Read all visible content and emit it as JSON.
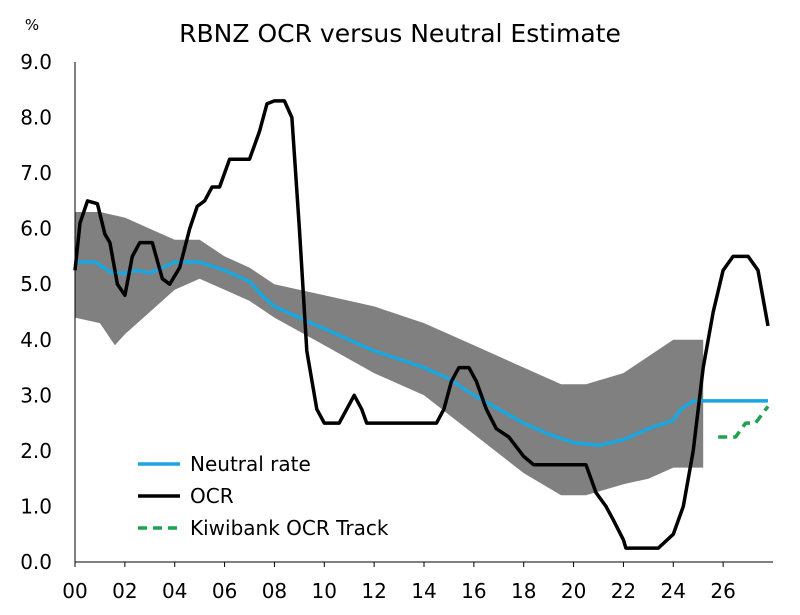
{
  "chart_data": {
    "type": "line",
    "title": "RBNZ OCR versus Neutral Estimate",
    "ylabel": "%",
    "xlabel": "",
    "xlim": [
      0,
      28
    ],
    "ylim": [
      0,
      9
    ],
    "x_ticks": [
      0,
      2,
      4,
      6,
      8,
      10,
      12,
      14,
      16,
      18,
      20,
      22,
      24,
      26
    ],
    "x_tick_labels": [
      "00",
      "02",
      "04",
      "06",
      "08",
      "10",
      "12",
      "14",
      "16",
      "18",
      "20",
      "22",
      "24",
      "26"
    ],
    "y_ticks": [
      0,
      1,
      2,
      3,
      4,
      5,
      6,
      7,
      8,
      9
    ],
    "y_tick_labels": [
      "0.0",
      "1.0",
      "2.0",
      "3.0",
      "4.0",
      "5.0",
      "6.0",
      "7.0",
      "8.0",
      "9.0"
    ],
    "legend_position": "bottom-left",
    "colors": {
      "neutral": "#1aa7e0",
      "ocr": "#000000",
      "track": "#20a050",
      "band": "#808080",
      "axis": "#000000"
    },
    "band": {
      "name": "Neutral estimate range",
      "upper": [
        [
          0,
          6.3
        ],
        [
          1,
          6.3
        ],
        [
          2,
          6.2
        ],
        [
          3,
          6.0
        ],
        [
          4,
          5.8
        ],
        [
          5,
          5.8
        ],
        [
          6,
          5.5
        ],
        [
          7,
          5.3
        ],
        [
          8,
          5.0
        ],
        [
          10,
          4.8
        ],
        [
          12,
          4.6
        ],
        [
          14,
          4.3
        ],
        [
          16,
          3.9
        ],
        [
          18,
          3.5
        ],
        [
          19.5,
          3.2
        ],
        [
          20.5,
          3.2
        ],
        [
          22,
          3.4
        ],
        [
          23,
          3.7
        ],
        [
          24,
          4.0
        ],
        [
          25.2,
          4.0
        ]
      ],
      "lower": [
        [
          0,
          4.4
        ],
        [
          1,
          4.3
        ],
        [
          1.6,
          3.9
        ],
        [
          2,
          4.1
        ],
        [
          3,
          4.5
        ],
        [
          4,
          4.9
        ],
        [
          5,
          5.1
        ],
        [
          6,
          4.9
        ],
        [
          7,
          4.7
        ],
        [
          8,
          4.4
        ],
        [
          10,
          3.9
        ],
        [
          12,
          3.4
        ],
        [
          14,
          3.0
        ],
        [
          16,
          2.3
        ],
        [
          18,
          1.6
        ],
        [
          19.5,
          1.2
        ],
        [
          20.5,
          1.2
        ],
        [
          22,
          1.4
        ],
        [
          23,
          1.5
        ],
        [
          24,
          1.7
        ],
        [
          25.2,
          1.7
        ]
      ]
    },
    "series": [
      {
        "name": "Neutral rate",
        "color": "#1aa7e0",
        "style": "solid",
        "points": [
          [
            0,
            5.4
          ],
          [
            0.8,
            5.4
          ],
          [
            1.5,
            5.2
          ],
          [
            2,
            5.2
          ],
          [
            2.5,
            5.25
          ],
          [
            3,
            5.2
          ],
          [
            3.5,
            5.3
          ],
          [
            4,
            5.4
          ],
          [
            5,
            5.4
          ],
          [
            6,
            5.25
          ],
          [
            7,
            5.05
          ],
          [
            7.5,
            4.8
          ],
          [
            8,
            4.6
          ],
          [
            9,
            4.4
          ],
          [
            10,
            4.2
          ],
          [
            11,
            4.0
          ],
          [
            12,
            3.8
          ],
          [
            13,
            3.65
          ],
          [
            14,
            3.5
          ],
          [
            15,
            3.3
          ],
          [
            16,
            3.0
          ],
          [
            17,
            2.75
          ],
          [
            18,
            2.5
          ],
          [
            19,
            2.3
          ],
          [
            20,
            2.15
          ],
          [
            21,
            2.1
          ],
          [
            22,
            2.2
          ],
          [
            23,
            2.4
          ],
          [
            24,
            2.55
          ],
          [
            24.3,
            2.75
          ],
          [
            24.8,
            2.9
          ],
          [
            25,
            2.9
          ],
          [
            26,
            2.9
          ],
          [
            27.8,
            2.9
          ]
        ]
      },
      {
        "name": "OCR",
        "color": "#000000",
        "style": "solid",
        "points": [
          [
            0,
            5.25
          ],
          [
            0.2,
            6.1
          ],
          [
            0.5,
            6.5
          ],
          [
            0.9,
            6.45
          ],
          [
            1.2,
            5.9
          ],
          [
            1.4,
            5.75
          ],
          [
            1.7,
            5.0
          ],
          [
            2,
            4.8
          ],
          [
            2.3,
            5.5
          ],
          [
            2.6,
            5.75
          ],
          [
            3.1,
            5.75
          ],
          [
            3.5,
            5.1
          ],
          [
            3.8,
            5.0
          ],
          [
            4.2,
            5.3
          ],
          [
            4.6,
            6.0
          ],
          [
            4.9,
            6.4
          ],
          [
            5.2,
            6.5
          ],
          [
            5.5,
            6.75
          ],
          [
            5.8,
            6.75
          ],
          [
            6.2,
            7.25
          ],
          [
            7.0,
            7.25
          ],
          [
            7.4,
            7.75
          ],
          [
            7.7,
            8.25
          ],
          [
            8.0,
            8.3
          ],
          [
            8.4,
            8.3
          ],
          [
            8.7,
            8.0
          ],
          [
            9.0,
            6.0
          ],
          [
            9.3,
            3.8
          ],
          [
            9.7,
            2.75
          ],
          [
            10,
            2.5
          ],
          [
            10.6,
            2.5
          ],
          [
            10.9,
            2.75
          ],
          [
            11.2,
            3.0
          ],
          [
            11.5,
            2.75
          ],
          [
            11.7,
            2.5
          ],
          [
            14.5,
            2.5
          ],
          [
            14.8,
            2.75
          ],
          [
            15.1,
            3.25
          ],
          [
            15.4,
            3.5
          ],
          [
            15.8,
            3.5
          ],
          [
            16.1,
            3.25
          ],
          [
            16.5,
            2.75
          ],
          [
            16.9,
            2.4
          ],
          [
            17.4,
            2.25
          ],
          [
            18,
            1.9
          ],
          [
            18.4,
            1.75
          ],
          [
            20.5,
            1.75
          ],
          [
            20.9,
            1.25
          ],
          [
            21.3,
            1.0
          ],
          [
            21.6,
            0.75
          ],
          [
            22,
            0.4
          ],
          [
            22.1,
            0.25
          ],
          [
            23.4,
            0.25
          ],
          [
            24,
            0.5
          ],
          [
            24.4,
            1.0
          ],
          [
            24.8,
            2.0
          ],
          [
            25.2,
            3.5
          ],
          [
            25.6,
            4.5
          ],
          [
            26.0,
            5.25
          ],
          [
            26.4,
            5.5
          ],
          [
            27.0,
            5.5
          ],
          [
            27.4,
            5.25
          ],
          [
            27.8,
            4.25
          ]
        ]
      },
      {
        "name": "Kiwibank OCR Track",
        "color": "#20a050",
        "style": "dashed",
        "points": [
          [
            25.8,
            2.25
          ],
          [
            26.5,
            2.25
          ],
          [
            26.9,
            2.5
          ],
          [
            27.3,
            2.5
          ],
          [
            27.8,
            2.8
          ]
        ]
      }
    ],
    "legend": [
      {
        "label": "Neutral rate",
        "color": "#1aa7e0",
        "style": "solid"
      },
      {
        "label": "OCR",
        "color": "#000000",
        "style": "solid"
      },
      {
        "label": "Kiwibank OCR Track",
        "color": "#20a050",
        "style": "dashed"
      }
    ]
  }
}
